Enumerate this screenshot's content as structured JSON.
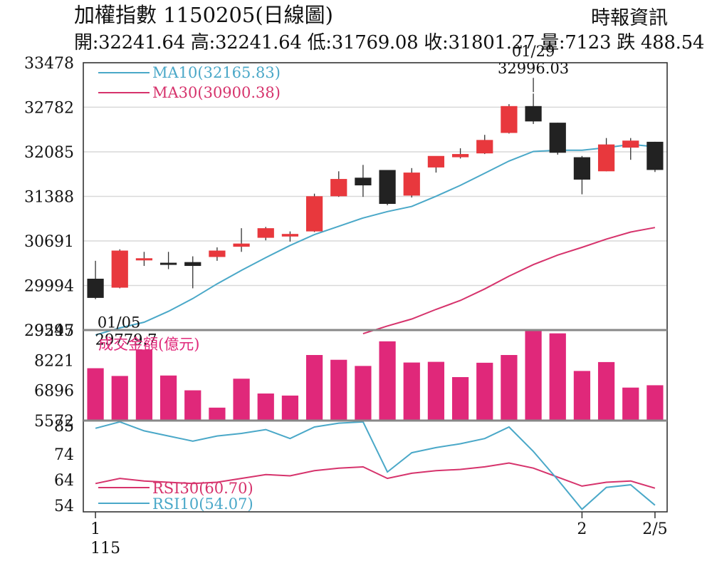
{
  "header": {
    "title": "加權指數 1150205(日線圖)",
    "source": "時報資訊",
    "ohlc": "開:32241.64 高:32241.64 低:31769.08 收:31801.27 量:7123 跌 488.54"
  },
  "colors": {
    "up": "#e8383d",
    "down": "#222222",
    "ma10": "#4aa8c8",
    "ma30": "#d6336c",
    "volume": "#e0287a",
    "rsi30": "#d6336c",
    "rsi10": "#4aa8c8",
    "grid": "#d9d9d9"
  },
  "chart_data": [
    {
      "type": "candlestick",
      "title": "加權指數 1150205(日線圖)",
      "yticks": [
        29297,
        29994,
        30691,
        31388,
        32085,
        32782,
        33478
      ],
      "ylim": [
        29297,
        33478
      ],
      "legend": [
        {
          "key": "ma10",
          "label": "MA10(32165.83)"
        },
        {
          "key": "ma30",
          "label": "MA30(30900.38)"
        }
      ],
      "annotations": [
        {
          "date": "01/05",
          "value": "29779.7",
          "index": 0,
          "price": 29779.7,
          "anchor": "below"
        },
        {
          "date": "01/29",
          "value": "32996.03",
          "index": 18,
          "price": 32996.03,
          "anchor": "above"
        }
      ],
      "candles": [
        {
          "o": 30100,
          "h": 30380,
          "l": 29780,
          "c": 29800
        },
        {
          "o": 29960,
          "h": 30560,
          "l": 29950,
          "c": 30540
        },
        {
          "o": 30400,
          "h": 30520,
          "l": 30300,
          "c": 30420
        },
        {
          "o": 30350,
          "h": 30520,
          "l": 30250,
          "c": 30330
        },
        {
          "o": 30360,
          "h": 30450,
          "l": 29950,
          "c": 30300
        },
        {
          "o": 30440,
          "h": 30590,
          "l": 30380,
          "c": 30540
        },
        {
          "o": 30600,
          "h": 30890,
          "l": 30520,
          "c": 30650
        },
        {
          "o": 30740,
          "h": 30910,
          "l": 30700,
          "c": 30890
        },
        {
          "o": 30760,
          "h": 30840,
          "l": 30680,
          "c": 30800
        },
        {
          "o": 30840,
          "h": 31430,
          "l": 30830,
          "c": 31390
        },
        {
          "o": 31390,
          "h": 31780,
          "l": 31380,
          "c": 31660
        },
        {
          "o": 31680,
          "h": 31880,
          "l": 31380,
          "c": 31560
        },
        {
          "o": 31800,
          "h": 31800,
          "l": 31250,
          "c": 31270
        },
        {
          "o": 31400,
          "h": 31830,
          "l": 31370,
          "c": 31760
        },
        {
          "o": 31840,
          "h": 32000,
          "l": 31760,
          "c": 32020
        },
        {
          "o": 32000,
          "h": 32140,
          "l": 31980,
          "c": 32050
        },
        {
          "o": 32060,
          "h": 32350,
          "l": 32050,
          "c": 32270
        },
        {
          "o": 32380,
          "h": 32830,
          "l": 32370,
          "c": 32800
        },
        {
          "o": 32800,
          "h": 32996,
          "l": 32520,
          "c": 32560
        },
        {
          "o": 32540,
          "h": 32540,
          "l": 32040,
          "c": 32070
        },
        {
          "o": 32000,
          "h": 32020,
          "l": 31420,
          "c": 31650
        },
        {
          "o": 31780,
          "h": 32300,
          "l": 31780,
          "c": 32200
        },
        {
          "o": 32150,
          "h": 32300,
          "l": 31960,
          "c": 32260
        },
        {
          "o": 32241.64,
          "h": 32241.64,
          "l": 31769.08,
          "c": 31801.27
        }
      ],
      "ma10": [
        29220,
        29330,
        29420,
        29590,
        29790,
        30020,
        30230,
        30430,
        30620,
        30790,
        30920,
        31050,
        31150,
        31230,
        31390,
        31560,
        31750,
        31940,
        32090,
        32110,
        32110,
        32150,
        32200,
        32166
      ],
      "ma30": [
        null,
        null,
        null,
        null,
        null,
        null,
        null,
        null,
        null,
        null,
        null,
        29240,
        29360,
        29470,
        29620,
        29760,
        29940,
        30140,
        30320,
        30470,
        30590,
        30720,
        30830,
        30900
      ]
    },
    {
      "type": "bar",
      "title": "成交金額(億元)",
      "yticks": [
        5572,
        6896,
        8221,
        9545
      ],
      "ylim": [
        5572,
        9545
      ],
      "values": [
        7870,
        7530,
        8690,
        7550,
        6900,
        6140,
        7410,
        6760,
        6670,
        8450,
        8240,
        7970,
        9050,
        8120,
        8150,
        7480,
        8110,
        8450,
        9545,
        9400,
        7750,
        8140,
        7020,
        7123
      ]
    },
    {
      "type": "line",
      "yticks": [
        54,
        64,
        74,
        85
      ],
      "ylim": [
        51.5,
        87
      ],
      "xticks": [
        {
          "index": 0,
          "label": "1",
          "sublabel": "115"
        },
        {
          "index": 20,
          "label": "2",
          "sublabel": ""
        },
        {
          "index": 23,
          "label": "2/5",
          "sublabel": ""
        }
      ],
      "legend": [
        {
          "key": "rsi30",
          "label": "RSI30(60.70)"
        },
        {
          "key": "rsi10",
          "label": "RSI10(54.07)"
        }
      ],
      "rsi30": [
        62.5,
        64.5,
        63.5,
        63,
        62.5,
        63,
        64.5,
        66,
        65.5,
        67.5,
        68.5,
        69,
        64.5,
        66.5,
        67.5,
        68,
        69,
        70.5,
        68.5,
        65,
        61.5,
        63,
        63.5,
        60.7
      ],
      "rsi10": [
        84,
        86.5,
        83,
        81,
        79,
        81,
        82,
        83.5,
        80,
        84.5,
        86,
        86.5,
        67,
        74.5,
        76.5,
        78,
        80,
        84.5,
        75,
        64,
        52.5,
        61,
        62,
        54.07
      ]
    }
  ]
}
